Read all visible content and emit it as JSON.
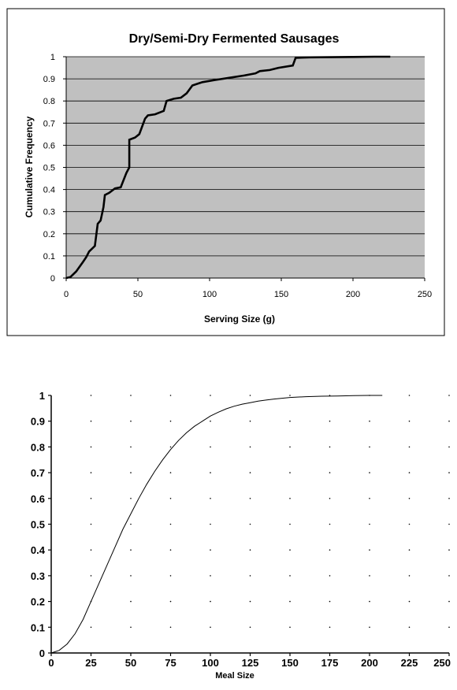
{
  "chart_data": [
    {
      "type": "line",
      "title": "Dry/Semi-Dry Fermented Sausages",
      "xlabel": "Serving Size (g)",
      "ylabel": "Cumulative Frequency",
      "xlim": [
        0,
        250
      ],
      "ylim": [
        0,
        1
      ],
      "x_ticks": [
        "0",
        "50",
        "100",
        "150",
        "200",
        "250"
      ],
      "y_ticks": [
        "0",
        "0.1",
        "0.2",
        "0.3",
        "0.4",
        "0.5",
        "0.6",
        "0.7",
        "0.8",
        "0.9",
        "1"
      ],
      "grid": "horizontal",
      "background": "#c0c0c0",
      "line_color": "#000000",
      "series": [
        {
          "x": [
            0,
            3,
            7,
            12,
            14,
            16,
            20,
            22,
            24,
            26,
            27,
            30,
            34,
            38,
            42,
            44,
            44,
            48,
            51,
            55,
            57,
            62,
            68,
            70,
            75,
            80,
            84,
            88,
            95,
            104,
            114,
            124,
            132,
            135,
            142,
            148,
            158,
            160,
            170,
            185,
            200,
            215,
            226
          ],
          "y": [
            0,
            0.005,
            0.03,
            0.075,
            0.095,
            0.12,
            0.145,
            0.245,
            0.26,
            0.32,
            0.375,
            0.385,
            0.405,
            0.41,
            0.475,
            0.5,
            0.625,
            0.635,
            0.65,
            0.72,
            0.735,
            0.74,
            0.755,
            0.8,
            0.81,
            0.815,
            0.835,
            0.87,
            0.885,
            0.895,
            0.905,
            0.915,
            0.925,
            0.935,
            0.94,
            0.95,
            0.96,
            0.995,
            0.997,
            0.998,
            0.999,
            1.0,
            1.0
          ]
        }
      ]
    },
    {
      "type": "line",
      "title": "",
      "xlabel": "Meal Size",
      "ylabel": "",
      "xlim": [
        0,
        250
      ],
      "ylim": [
        0,
        1
      ],
      "x_ticks": [
        "0",
        "25",
        "50",
        "75",
        "100",
        "125",
        "150",
        "175",
        "200",
        "225",
        "250"
      ],
      "y_ticks": [
        "0",
        "0.1",
        "0.2",
        "0.3",
        "0.4",
        "0.5",
        "0.6",
        "0.7",
        "0.8",
        "0.9",
        "1"
      ],
      "grid": "dotted points",
      "background": "#ffffff",
      "line_color": "#000000",
      "series": [
        {
          "x": [
            0,
            5,
            10,
            15,
            20,
            25,
            30,
            35,
            40,
            45,
            50,
            55,
            60,
            65,
            70,
            75,
            80,
            85,
            90,
            95,
            100,
            105,
            110,
            115,
            120,
            125,
            130,
            135,
            140,
            145,
            150,
            160,
            170,
            180,
            190,
            200,
            208
          ],
          "y": [
            0,
            0.01,
            0.035,
            0.075,
            0.13,
            0.2,
            0.27,
            0.34,
            0.41,
            0.48,
            0.54,
            0.6,
            0.655,
            0.705,
            0.75,
            0.79,
            0.825,
            0.855,
            0.88,
            0.9,
            0.92,
            0.935,
            0.948,
            0.958,
            0.966,
            0.972,
            0.978,
            0.982,
            0.986,
            0.989,
            0.992,
            0.995,
            0.997,
            0.998,
            0.999,
            1.0,
            1.0
          ]
        }
      ]
    }
  ]
}
